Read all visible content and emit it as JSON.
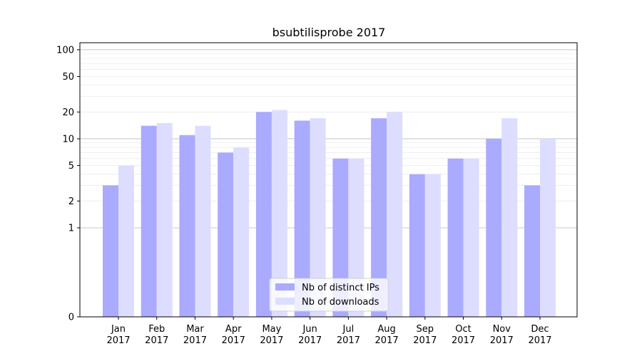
{
  "chart_data": {
    "type": "bar",
    "title": "bsubtilisprobe 2017",
    "xlabel": "",
    "ylabel": "",
    "y_scale": "symlog",
    "ylim": [
      0,
      120
    ],
    "y_ticks": [
      0,
      1,
      2,
      5,
      10,
      20,
      50,
      100
    ],
    "grid": true,
    "legend_position": "lower-center",
    "categories": [
      "Jan\n2017",
      "Feb\n2017",
      "Mar\n2017",
      "Apr\n2017",
      "May\n2017",
      "Jun\n2017",
      "Jul\n2017",
      "Aug\n2017",
      "Sep\n2017",
      "Oct\n2017",
      "Nov\n2017",
      "Dec\n2017"
    ],
    "series": [
      {
        "name": "Nb of distinct IPs",
        "color": "#aaaaff",
        "values": [
          3,
          14,
          11,
          7,
          20,
          16,
          6,
          17,
          4,
          6,
          10,
          3
        ]
      },
      {
        "name": "Nb of downloads",
        "color": "#ddddff",
        "values": [
          5,
          15,
          14,
          8,
          21,
          17,
          6,
          20,
          4,
          6,
          17,
          10
        ]
      }
    ]
  }
}
